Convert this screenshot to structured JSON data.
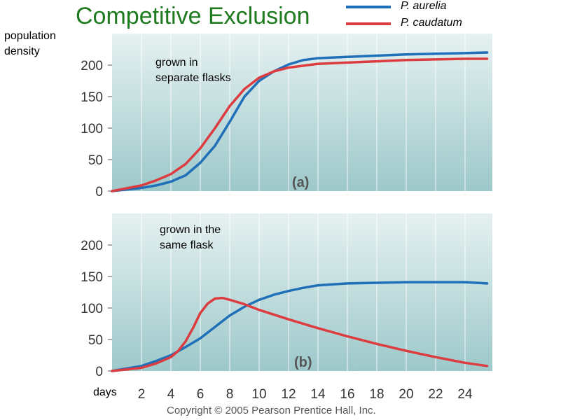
{
  "title": "Competitive Exclusion",
  "ylabel": "population density",
  "xlabel": "days",
  "copyright": "Copyright © 2005 Pearson Prentice Hall, Inc.",
  "colors": {
    "aurelia": "#1f70b8",
    "caudatum": "#dc3c40",
    "title": "#1e7a1e"
  },
  "legend": [
    {
      "name": "P. aurelia",
      "color": "#1f70b8"
    },
    {
      "name": "P. caudatum",
      "color": "#dc3c40"
    }
  ],
  "chart_data": [
    {
      "type": "line",
      "panel_label": "(a)",
      "annotation": "grown in separate flasks",
      "xlim": [
        0,
        26
      ],
      "ylim": [
        0,
        240
      ],
      "yticks": [
        0,
        50,
        100,
        150,
        200
      ],
      "xticks": [
        2,
        4,
        6,
        8,
        10,
        12,
        14,
        16,
        18,
        20,
        22,
        24
      ],
      "grid": "vertical",
      "series": [
        {
          "name": "P. aurelia",
          "x": [
            0,
            2,
            3,
            4,
            5,
            6,
            7,
            8,
            9,
            10,
            11,
            12,
            13,
            14,
            16,
            18,
            20,
            22,
            24,
            25.5
          ],
          "y": [
            0,
            5,
            9,
            15,
            25,
            45,
            72,
            110,
            150,
            175,
            190,
            201,
            208,
            211,
            213,
            215,
            217,
            218,
            219,
            220
          ]
        },
        {
          "name": "P. caudatum",
          "x": [
            0,
            2,
            3,
            4,
            5,
            6,
            7,
            8,
            9,
            10,
            11,
            12,
            13,
            14,
            16,
            18,
            20,
            22,
            24,
            25.5
          ],
          "y": [
            0,
            9,
            17,
            27,
            43,
            68,
            100,
            135,
            162,
            180,
            190,
            196,
            199,
            202,
            204,
            206,
            208,
            209,
            210,
            210
          ]
        }
      ]
    },
    {
      "type": "line",
      "panel_label": "(b)",
      "annotation": "grown in the same flask",
      "xlim": [
        0,
        26
      ],
      "ylim": [
        0,
        240
      ],
      "yticks": [
        0,
        50,
        100,
        150,
        200
      ],
      "xticks": [
        2,
        4,
        6,
        8,
        10,
        12,
        14,
        16,
        18,
        20,
        22,
        24
      ],
      "grid": "vertical",
      "series": [
        {
          "name": "P. aurelia",
          "x": [
            0,
            2,
            3,
            4,
            5,
            6,
            7,
            8,
            9,
            10,
            11,
            12,
            13,
            14,
            16,
            18,
            20,
            22,
            24,
            25.5
          ],
          "y": [
            0,
            8,
            16,
            25,
            38,
            52,
            70,
            88,
            102,
            113,
            121,
            127,
            132,
            136,
            139,
            140,
            141,
            141,
            141,
            139
          ]
        },
        {
          "name": "P. caudatum",
          "x": [
            0,
            2,
            3,
            4,
            4.5,
            5,
            5.5,
            6,
            6.5,
            7,
            7.5,
            8,
            9,
            10,
            12,
            14,
            16,
            18,
            20,
            22,
            24,
            25.5
          ],
          "y": [
            0,
            5,
            12,
            22,
            32,
            47,
            68,
            92,
            107,
            115,
            116,
            113,
            106,
            97,
            82,
            68,
            55,
            43,
            32,
            22,
            13,
            8
          ]
        }
      ]
    }
  ]
}
